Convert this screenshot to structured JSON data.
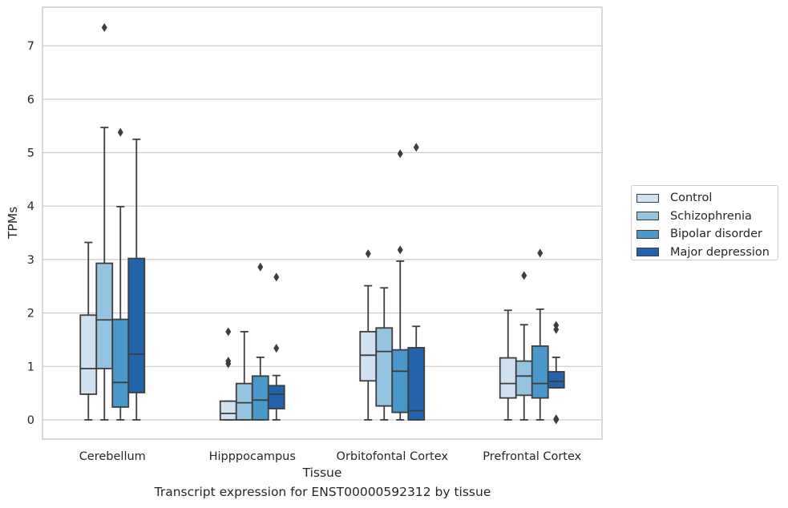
{
  "caption": "Transcript expression for ENST00000592312 by tissue",
  "chart_data": {
    "type": "box",
    "xlabel": "Tissue",
    "ylabel": "TPMs",
    "ylim": [
      -0.35,
      7.75
    ],
    "yticks": [
      0,
      1,
      2,
      3,
      4,
      5,
      6,
      7
    ],
    "grid": "horizontal",
    "legend_placement": "right",
    "categories": [
      "Cerebellum",
      "Hipppocampus",
      "Orbitofontal Cortex",
      "Prefrontal Cortex"
    ],
    "series": [
      {
        "name": "Control",
        "color": "#d0e1f2",
        "boxes": [
          {
            "whislo": 0,
            "q1": 0.48,
            "med": 0.96,
            "q3": 1.96,
            "whishi": 3.32,
            "fliers": []
          },
          {
            "whislo": 0,
            "q1": 0.0,
            "med": 0.12,
            "q3": 0.35,
            "whishi": 0.35,
            "fliers": [
              1.05,
              1.1,
              1.65
            ]
          },
          {
            "whislo": 0,
            "q1": 0.73,
            "med": 1.21,
            "q3": 1.65,
            "whishi": 2.51,
            "fliers": [
              3.11
            ]
          },
          {
            "whislo": 0,
            "q1": 0.41,
            "med": 0.68,
            "q3": 1.16,
            "whishi": 2.05,
            "fliers": []
          }
        ]
      },
      {
        "name": "Schizophrenia",
        "color": "#94c4df",
        "boxes": [
          {
            "whislo": 0,
            "q1": 0.96,
            "med": 1.87,
            "q3": 2.93,
            "whishi": 5.47,
            "fliers": [
              7.34
            ]
          },
          {
            "whislo": 0,
            "q1": 0.0,
            "med": 0.32,
            "q3": 0.68,
            "whishi": 1.65,
            "fliers": []
          },
          {
            "whislo": 0,
            "q1": 0.26,
            "med": 1.28,
            "q3": 1.72,
            "whishi": 2.47,
            "fliers": []
          },
          {
            "whislo": 0,
            "q1": 0.46,
            "med": 0.82,
            "q3": 1.1,
            "whishi": 1.78,
            "fliers": [
              2.7
            ]
          }
        ]
      },
      {
        "name": "Bipolar disorder",
        "color": "#4a98c9",
        "boxes": [
          {
            "whislo": 0,
            "q1": 0.24,
            "med": 0.7,
            "q3": 1.88,
            "whishi": 3.99,
            "fliers": [
              5.38
            ]
          },
          {
            "whislo": 0,
            "q1": 0.0,
            "med": 0.37,
            "q3": 0.82,
            "whishi": 1.17,
            "fliers": [
              2.86
            ]
          },
          {
            "whislo": 0,
            "q1": 0.14,
            "med": 0.91,
            "q3": 1.31,
            "whishi": 2.97,
            "fliers": [
              3.18,
              4.98
            ]
          },
          {
            "whislo": 0,
            "q1": 0.41,
            "med": 0.68,
            "q3": 1.38,
            "whishi": 2.07,
            "fliers": [
              3.12
            ]
          }
        ]
      },
      {
        "name": "Major depression",
        "color": "#2264ac",
        "boxes": [
          {
            "whislo": 0,
            "q1": 0.51,
            "med": 1.23,
            "q3": 3.02,
            "whishi": 5.25,
            "fliers": []
          },
          {
            "whislo": 0,
            "q1": 0.21,
            "med": 0.48,
            "q3": 0.64,
            "whishi": 0.83,
            "fliers": [
              1.34,
              2.67
            ]
          },
          {
            "whislo": 0,
            "q1": 0.0,
            "med": 0.17,
            "q3": 1.35,
            "whishi": 1.75,
            "fliers": [
              5.1
            ]
          },
          {
            "whislo": 0.6,
            "q1": 0.6,
            "med": 0.72,
            "q3": 0.9,
            "whishi": 1.17,
            "fliers": [
              0.0,
              0.02,
              1.69,
              1.77
            ]
          }
        ]
      }
    ]
  }
}
